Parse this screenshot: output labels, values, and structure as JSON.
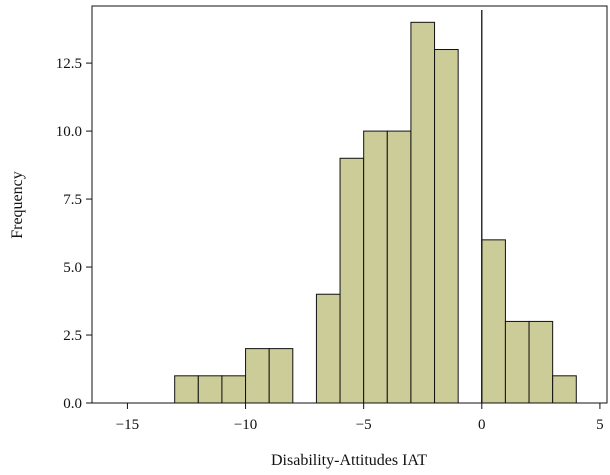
{
  "chart_data": {
    "type": "bar",
    "title": "",
    "xlabel": "Disability-Attitudes IAT",
    "ylabel": "Frequency",
    "xlim": [
      -16.5,
      5.3
    ],
    "ylim": [
      0,
      14.6
    ],
    "xticks": [
      -15,
      -10,
      -5,
      0,
      5
    ],
    "xtick_labels": [
      "−15",
      "−10",
      "−5",
      "0",
      "5"
    ],
    "yticks": [
      0,
      2.5,
      5,
      7.5,
      10,
      12.5
    ],
    "ytick_labels": [
      "0.0",
      "2.5",
      "5.0",
      "7.5",
      "10.0",
      "12.5"
    ],
    "reference_line_x": 0,
    "bin_width": 1,
    "bins": [
      {
        "x0": -13,
        "x1": -12,
        "value": 1
      },
      {
        "x0": -12,
        "x1": -11,
        "value": 1
      },
      {
        "x0": -11,
        "x1": -10,
        "value": 1
      },
      {
        "x0": -10,
        "x1": -9,
        "value": 2
      },
      {
        "x0": -9,
        "x1": -8,
        "value": 2
      },
      {
        "x0": -7,
        "x1": -6,
        "value": 4
      },
      {
        "x0": -6,
        "x1": -5,
        "value": 9
      },
      {
        "x0": -5,
        "x1": -4,
        "value": 10
      },
      {
        "x0": -4,
        "x1": -3,
        "value": 10
      },
      {
        "x0": -3,
        "x1": -2,
        "value": 14
      },
      {
        "x0": -2,
        "x1": -1,
        "value": 13
      },
      {
        "x0": 0,
        "x1": 1,
        "value": 6
      },
      {
        "x0": 1,
        "x1": 2,
        "value": 3
      },
      {
        "x0": 2,
        "x1": 3,
        "value": 3
      },
      {
        "x0": 3,
        "x1": 4,
        "value": 1
      }
    ],
    "bar_color": "#cccc99",
    "bar_edge_color": "#111111",
    "grid": false
  }
}
